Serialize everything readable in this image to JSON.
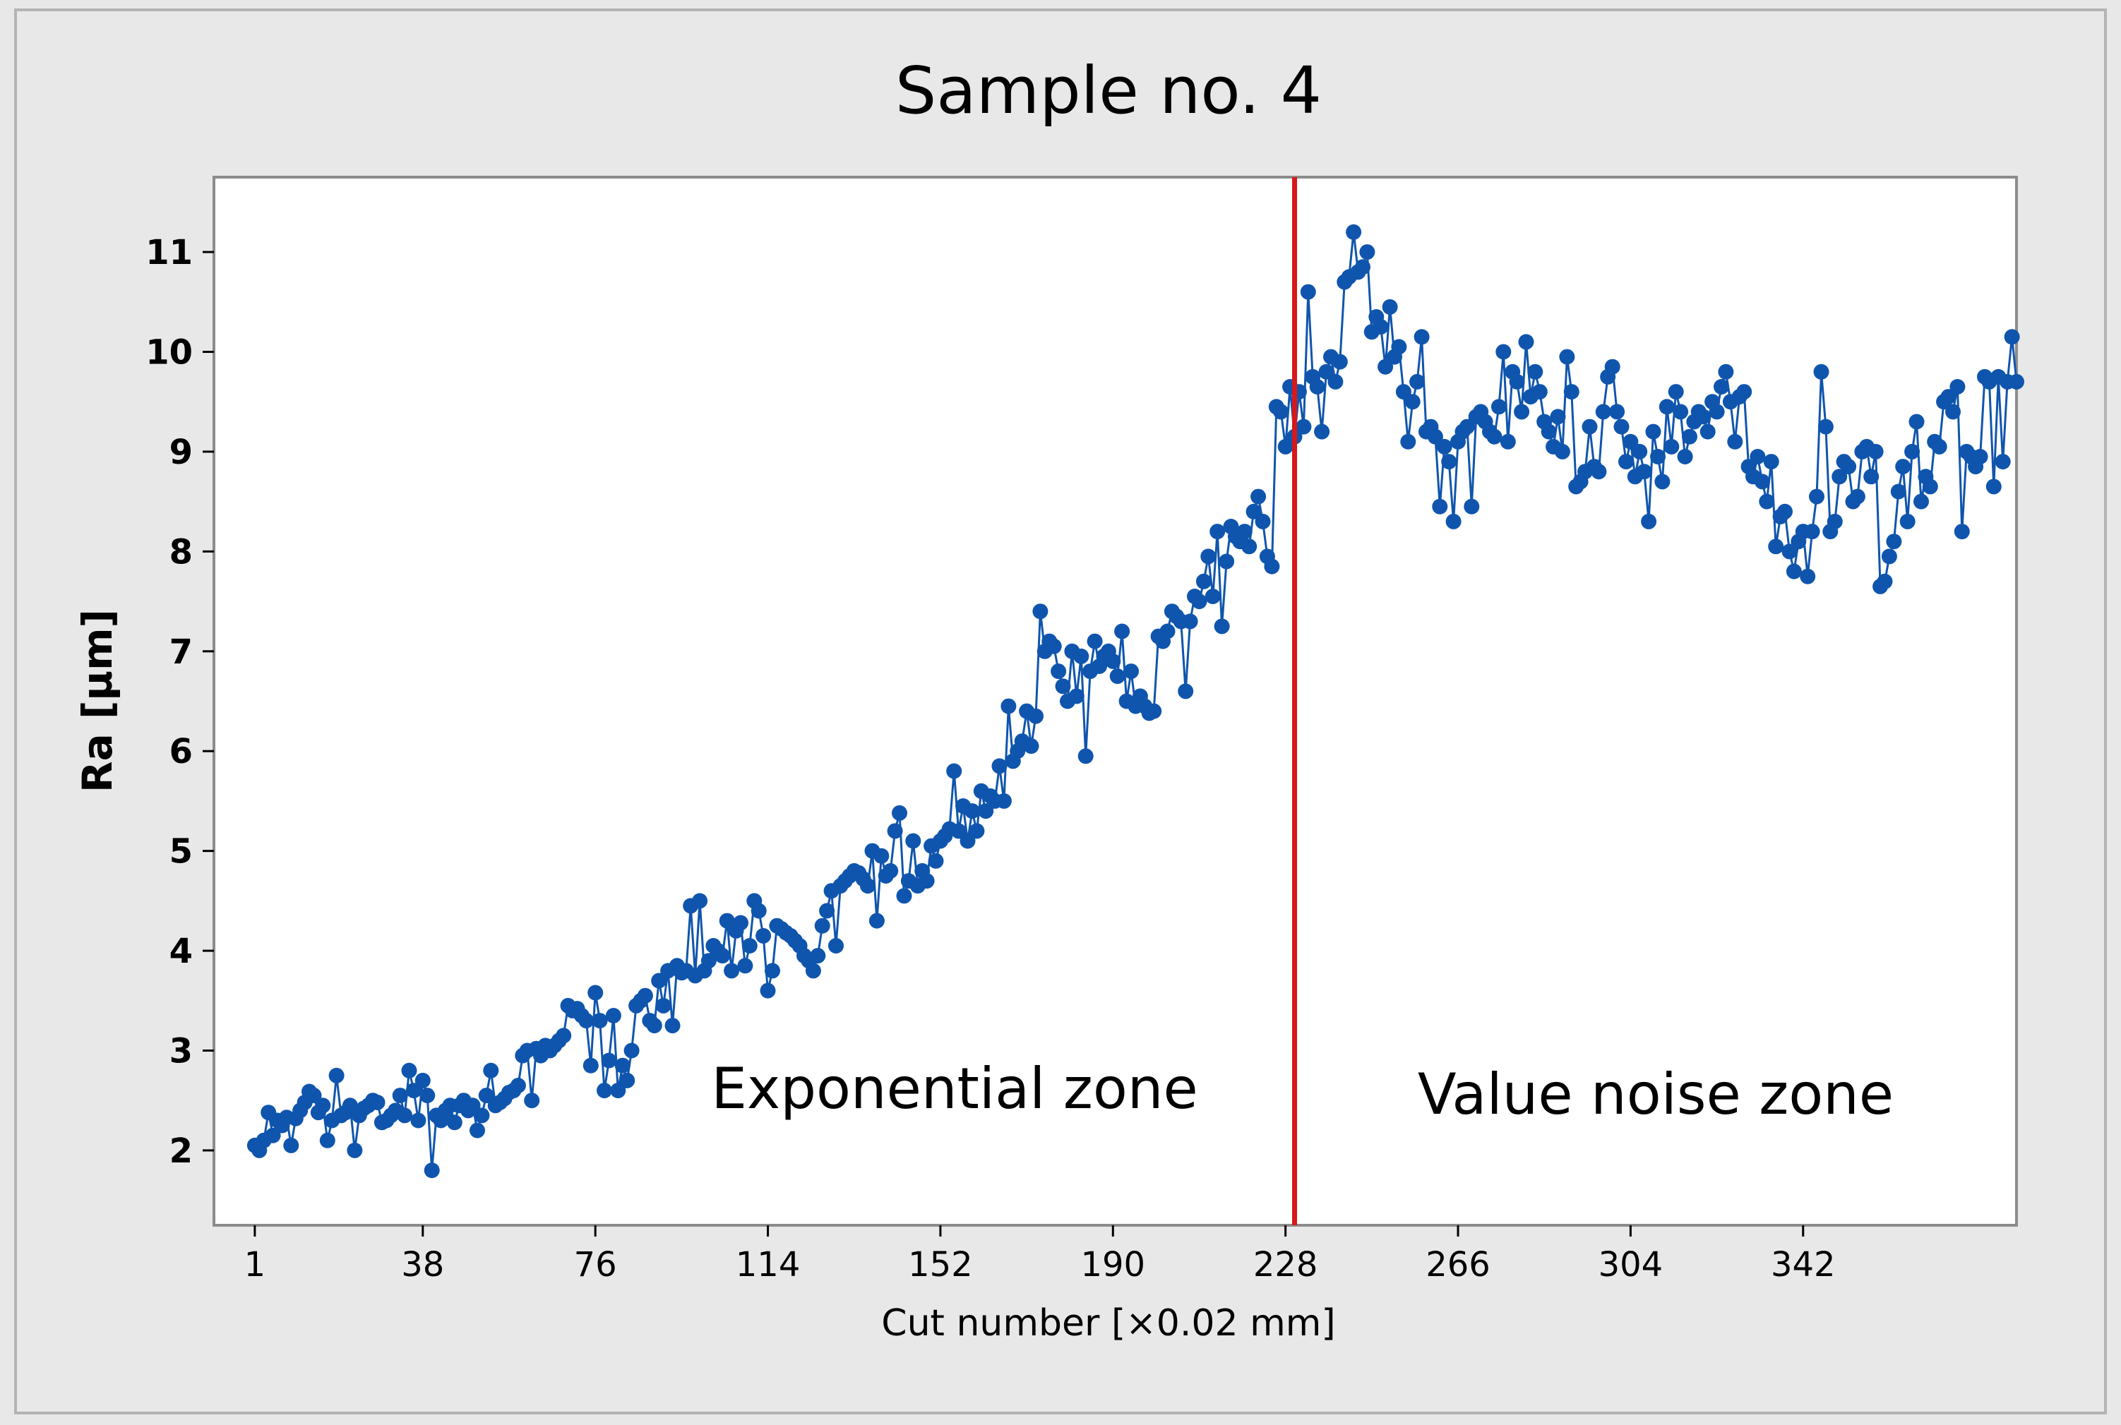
{
  "chart_data": {
    "type": "line",
    "title": "Sample no. 4",
    "xlabel": "Cut number [×0.02 mm]",
    "ylabel": "Ra [µm]",
    "xlim": [
      -8,
      389
    ],
    "ylim": [
      1.25,
      11.75
    ],
    "x_ticks": [
      1,
      38,
      76,
      114,
      152,
      190,
      228,
      266,
      304,
      342
    ],
    "y_ticks": [
      2,
      3,
      4,
      5,
      6,
      7,
      8,
      9,
      10,
      11
    ],
    "grid": false,
    "marker": "circle",
    "colors": {
      "series": "#0f55ad",
      "divider": "#d81818",
      "background": "#e8e8e8",
      "plot_background": "#ffffff",
      "frame": "#8c8c8c"
    },
    "divider": {
      "x": 230
    },
    "zones": [
      {
        "label": "Exponential zone"
      },
      {
        "label": "Value noise zone"
      }
    ],
    "series": [
      {
        "name": "Ra",
        "x_start": 1,
        "x_step": 1,
        "values": [
          2.05,
          2.0,
          2.1,
          2.38,
          2.15,
          2.3,
          2.25,
          2.33,
          2.05,
          2.32,
          2.4,
          2.48,
          2.59,
          2.55,
          2.38,
          2.45,
          2.1,
          2.3,
          2.75,
          2.35,
          2.38,
          2.45,
          2.0,
          2.35,
          2.42,
          2.45,
          2.5,
          2.48,
          2.28,
          2.3,
          2.35,
          2.4,
          2.55,
          2.35,
          2.8,
          2.6,
          2.3,
          2.7,
          2.55,
          1.8,
          2.35,
          2.3,
          2.4,
          2.45,
          2.28,
          2.45,
          2.5,
          2.4,
          2.45,
          2.2,
          2.35,
          2.55,
          2.8,
          2.45,
          2.48,
          2.52,
          2.58,
          2.6,
          2.65,
          2.95,
          3.0,
          2.5,
          3.02,
          2.95,
          3.05,
          3.0,
          3.05,
          3.1,
          3.15,
          3.45,
          3.4,
          3.42,
          3.35,
          3.3,
          2.85,
          3.58,
          3.3,
          2.6,
          2.9,
          3.35,
          2.6,
          2.85,
          2.7,
          3.0,
          3.45,
          3.5,
          3.55,
          3.3,
          3.25,
          3.7,
          3.45,
          3.8,
          3.25,
          3.85,
          3.78,
          3.8,
          4.45,
          3.75,
          4.5,
          3.8,
          3.9,
          4.05,
          4.0,
          3.95,
          4.3,
          3.8,
          4.2,
          4.28,
          3.85,
          4.05,
          4.5,
          4.4,
          4.15,
          3.6,
          3.8,
          4.25,
          4.22,
          4.18,
          4.15,
          4.1,
          4.05,
          3.95,
          3.9,
          3.8,
          3.95,
          4.25,
          4.4,
          4.6,
          4.05,
          4.65,
          4.7,
          4.75,
          4.8,
          4.78,
          4.72,
          4.65,
          5.0,
          4.3,
          4.95,
          4.75,
          4.8,
          5.2,
          5.38,
          4.55,
          4.7,
          5.1,
          4.65,
          4.8,
          4.7,
          5.05,
          4.9,
          5.1,
          5.15,
          5.22,
          5.8,
          5.2,
          5.45,
          5.1,
          5.4,
          5.2,
          5.6,
          5.4,
          5.55,
          5.5,
          5.85,
          5.5,
          6.45,
          5.9,
          6.0,
          6.1,
          6.4,
          6.05,
          6.35,
          7.4,
          7.0,
          7.1,
          7.05,
          6.8,
          6.65,
          6.5,
          7.0,
          6.55,
          6.95,
          5.95,
          6.8,
          7.1,
          6.85,
          6.95,
          7.0,
          6.9,
          6.75,
          7.2,
          6.5,
          6.8,
          6.45,
          6.55,
          6.45,
          6.38,
          6.4,
          7.15,
          7.1,
          7.2,
          7.4,
          7.35,
          7.3,
          6.6,
          7.3,
          7.55,
          7.5,
          7.7,
          7.95,
          7.55,
          8.2,
          7.25,
          7.9,
          8.25,
          8.15,
          8.1,
          8.2,
          8.05,
          8.4,
          8.55,
          8.3,
          7.95,
          7.85,
          9.45,
          9.4,
          9.05,
          9.65,
          9.15,
          9.6,
          9.25,
          10.6,
          9.75,
          9.65,
          9.2,
          9.8,
          9.95,
          9.7,
          9.9,
          10.7,
          10.75,
          11.2,
          10.8,
          10.85,
          11.0,
          10.2,
          10.35,
          10.25,
          9.85,
          10.45,
          9.95,
          10.05,
          9.6,
          9.1,
          9.5,
          9.7,
          10.15,
          9.2,
          9.25,
          9.15,
          8.45,
          9.05,
          8.9,
          8.3,
          9.1,
          9.2,
          9.25,
          8.45,
          9.35,
          9.4,
          9.3,
          9.2,
          9.15,
          9.45,
          10.0,
          9.1,
          9.8,
          9.7,
          9.4,
          10.1,
          9.55,
          9.8,
          9.6,
          9.3,
          9.2,
          9.05,
          9.35,
          9.0,
          9.95,
          9.6,
          8.65,
          8.7,
          8.8,
          9.25,
          8.85,
          8.8,
          9.4,
          9.75,
          9.85,
          9.4,
          9.25,
          8.9,
          9.1,
          8.75,
          9.0,
          8.8,
          8.3,
          9.2,
          8.95,
          8.7,
          9.45,
          9.05,
          9.6,
          9.4,
          8.95,
          9.15,
          9.3,
          9.4,
          9.35,
          9.2,
          9.5,
          9.4,
          9.65,
          9.8,
          9.5,
          9.1,
          9.55,
          9.6,
          8.85,
          8.75,
          8.95,
          8.7,
          8.5,
          8.9,
          8.05,
          8.35,
          8.4,
          8.0,
          7.8,
          8.1,
          8.2,
          7.75,
          8.2,
          8.55,
          9.8,
          9.25,
          8.2,
          8.3,
          8.75,
          8.9,
          8.85,
          8.5,
          8.55,
          9.0,
          9.05,
          8.75,
          9.0,
          7.65,
          7.7,
          7.95,
          8.1,
          8.6,
          8.85,
          8.3,
          9.0,
          9.3,
          8.5,
          8.75,
          8.65,
          9.1,
          9.05,
          9.5,
          9.55,
          9.4,
          9.65,
          8.2,
          9.0,
          8.95,
          8.85,
          8.95,
          9.75,
          9.7,
          8.65,
          9.75,
          8.9,
          9.7,
          10.15,
          9.7
        ]
      }
    ]
  }
}
